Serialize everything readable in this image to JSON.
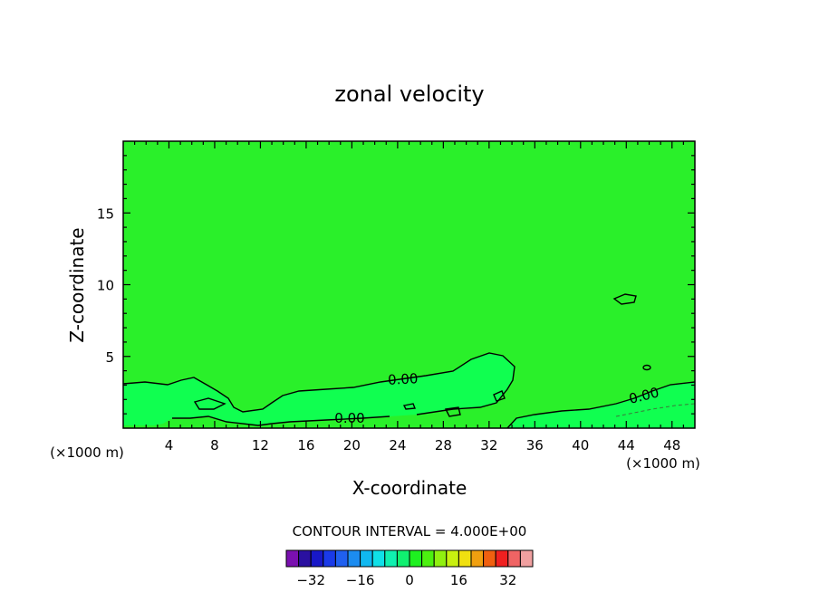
{
  "chart_data": {
    "type": "contour",
    "title": "zonal velocity",
    "xlabel": "X-coordinate",
    "ylabel": "Z-coordinate",
    "x_unit_label": "(×1000 m)",
    "xlim": [
      0,
      50
    ],
    "ylim": [
      0,
      20
    ],
    "x_ticks": [
      "4",
      "8",
      "12",
      "16",
      "20",
      "24",
      "28",
      "32",
      "36",
      "40",
      "44",
      "48"
    ],
    "y_ticks": [
      "5",
      "10",
      "15"
    ],
    "contour_labels": [
      "0.00",
      "0.00",
      "0.00"
    ],
    "contour_interval_text": "CONTOUR INTERVAL = 4.000E+00",
    "colorbar": {
      "tick_labels": [
        "−32",
        "−16",
        "0",
        "16",
        "32"
      ],
      "levels": [
        -36,
        -32,
        -28,
        -24,
        -20,
        -16,
        -12,
        -8,
        -4,
        0,
        4,
        8,
        12,
        16,
        20,
        24,
        28,
        32,
        36
      ],
      "colors": [
        "#7a10b0",
        "#2a10a0",
        "#1818c8",
        "#1a3ae8",
        "#2060f0",
        "#1c8cf0",
        "#10b8f0",
        "#10e0e8",
        "#10f0b0",
        "#10f070",
        "#1ef020",
        "#4cf010",
        "#90f010",
        "#c8f010",
        "#f0e010",
        "#f0a010",
        "#f06010",
        "#f02020",
        "#f06464",
        "#f0a0a0"
      ]
    },
    "field_colors": {
      "background": "#2af02a",
      "positive_region": "#10ff50"
    }
  }
}
